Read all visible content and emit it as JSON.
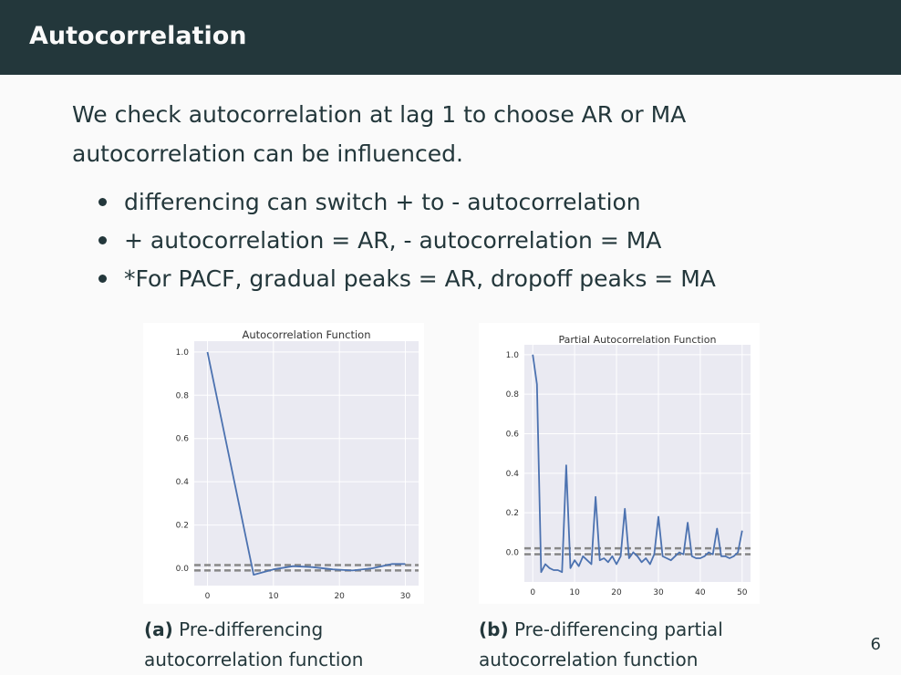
{
  "slide": {
    "title": "Autocorrelation",
    "intro_lines": [
      "We check autocorrelation at lag 1 to choose AR or MA",
      "autocorrelation can be influenced."
    ],
    "bullets": [
      "differencing can switch + to - autocorrelation",
      "+ autocorrelation = AR, - autocorrelation = MA",
      "*For PACF, gradual peaks = AR, dropoff peaks = MA"
    ],
    "page_number": "6"
  },
  "figures": [
    {
      "caption_number": "(a)",
      "caption_lines": [
        "Pre-differencing",
        "autocorrelation function"
      ]
    },
    {
      "caption_number": "(b)",
      "caption_lines": [
        "Pre-differencing partial",
        "autocorrelation function"
      ]
    }
  ],
  "colors": {
    "header_bg": "#23373b",
    "plot_bg": "#eaeaf2",
    "line": "#4c72b0",
    "confidence_band": "#888888"
  },
  "chart_data": [
    {
      "type": "line",
      "title": "Autocorrelation Function",
      "xlabel": "",
      "ylabel": "",
      "xlim": [
        -2,
        32
      ],
      "ylim": [
        -0.08,
        1.05
      ],
      "x_ticks": [
        0,
        10,
        20,
        30
      ],
      "y_ticks": [
        0.0,
        0.2,
        0.4,
        0.6,
        0.8,
        1.0
      ],
      "y_tick_labels": [
        "0.0",
        "0.2",
        "0.4",
        "0.6",
        "0.8",
        "1.0"
      ],
      "grid": true,
      "confidence_band": [
        -0.01,
        0.015
      ],
      "x": [
        0,
        7,
        10,
        13,
        16,
        19,
        22,
        25,
        28,
        30
      ],
      "values": [
        1.0,
        -0.03,
        -0.005,
        0.01,
        0.005,
        -0.005,
        -0.01,
        0.0,
        0.02,
        0.02
      ]
    },
    {
      "type": "line",
      "title": "Partial Autocorrelation Function",
      "xlabel": "",
      "ylabel": "",
      "xlim": [
        -2,
        52
      ],
      "ylim": [
        -0.15,
        1.05
      ],
      "x_ticks": [
        0,
        10,
        20,
        30,
        40,
        50
      ],
      "y_ticks": [
        0.0,
        0.2,
        0.4,
        0.6,
        0.8,
        1.0
      ],
      "y_tick_labels": [
        "0.0",
        "0.2",
        "0.4",
        "0.6",
        "0.8",
        "1.0"
      ],
      "grid": true,
      "confidence_band": [
        -0.01,
        0.02
      ],
      "x": [
        0,
        1,
        2,
        3,
        4,
        5,
        6,
        7,
        8,
        9,
        10,
        11,
        12,
        13,
        14,
        15,
        16,
        17,
        18,
        19,
        20,
        21,
        22,
        23,
        24,
        25,
        26,
        27,
        28,
        29,
        30,
        31,
        32,
        33,
        34,
        35,
        36,
        37,
        38,
        39,
        40,
        41,
        42,
        43,
        44,
        45,
        46,
        47,
        48,
        49,
        50
      ],
      "values": [
        1.0,
        0.85,
        -0.1,
        -0.06,
        -0.08,
        -0.09,
        -0.09,
        -0.1,
        0.44,
        -0.08,
        -0.04,
        -0.07,
        -0.02,
        -0.04,
        -0.06,
        0.28,
        -0.04,
        -0.03,
        -0.05,
        -0.02,
        -0.06,
        -0.02,
        0.22,
        -0.03,
        0.0,
        -0.02,
        -0.05,
        -0.03,
        -0.06,
        -0.01,
        0.18,
        -0.02,
        -0.03,
        -0.04,
        -0.02,
        0.0,
        -0.01,
        0.15,
        -0.02,
        -0.03,
        -0.03,
        -0.02,
        0.0,
        -0.01,
        0.12,
        -0.02,
        -0.02,
        -0.03,
        -0.02,
        0.0,
        0.11
      ]
    }
  ]
}
